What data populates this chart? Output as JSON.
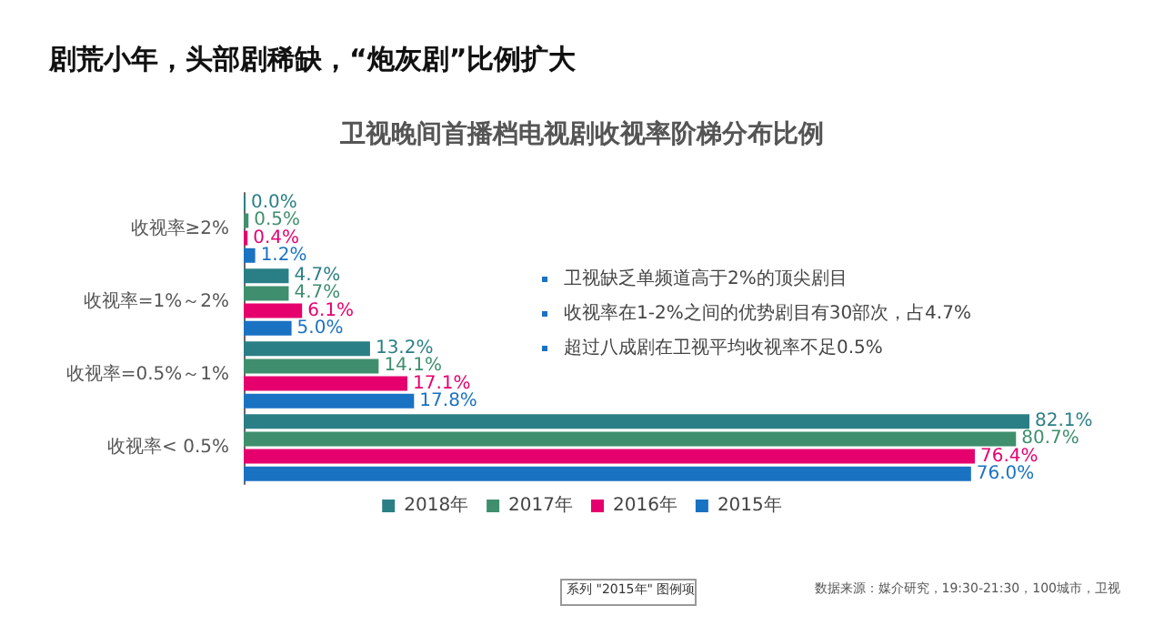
{
  "chart_data": {
    "type": "bar",
    "orientation": "horizontal",
    "title": "剧荒小年，头部剧稀缺，“炮灰剧”比例扩大",
    "subtitle": "卫视晚间首播档电视剧收视率阶梯分布比例",
    "categories": [
      "收视率≥2%",
      "收视率=1%～2%",
      "收视率=0.5%～1%",
      "收视率< 0.5%"
    ],
    "series": [
      {
        "name": "2018年",
        "color": "#2a7f86",
        "values": [
          0.0,
          4.7,
          13.2,
          82.1
        ],
        "value_labels": [
          "0.0%",
          "4.7%",
          "13.2%",
          "82.1%"
        ]
      },
      {
        "name": "2017年",
        "color": "#3f8f6e",
        "values": [
          0.5,
          4.7,
          14.1,
          80.7
        ],
        "value_labels": [
          "0.5%",
          "4.7%",
          "14.1%",
          "80.7%"
        ]
      },
      {
        "name": "2016年",
        "color": "#e5006e",
        "values": [
          0.4,
          6.1,
          17.1,
          76.4
        ],
        "value_labels": [
          "0.4%",
          "6.1%",
          "17.1%",
          "76.4%"
        ]
      },
      {
        "name": "2015年",
        "color": "#1a72c2",
        "values": [
          1.2,
          5.0,
          17.8,
          76.0
        ],
        "value_labels": [
          "1.2%",
          "5.0%",
          "17.8%",
          "76.0%"
        ]
      }
    ],
    "legend": "bottom",
    "annotations": [
      "卫视缺乏单频道高于2%的顶尖剧目",
      "收视率在1-2%之间的优势剧目有30部次，占4.7%",
      "超过八成剧在卫视平均收视率不足0.5%",
      "系列 \"2015年\" 图例项",
      "数据来源：媒介研究，19:30-21:30，100城市，卫视"
    ]
  }
}
